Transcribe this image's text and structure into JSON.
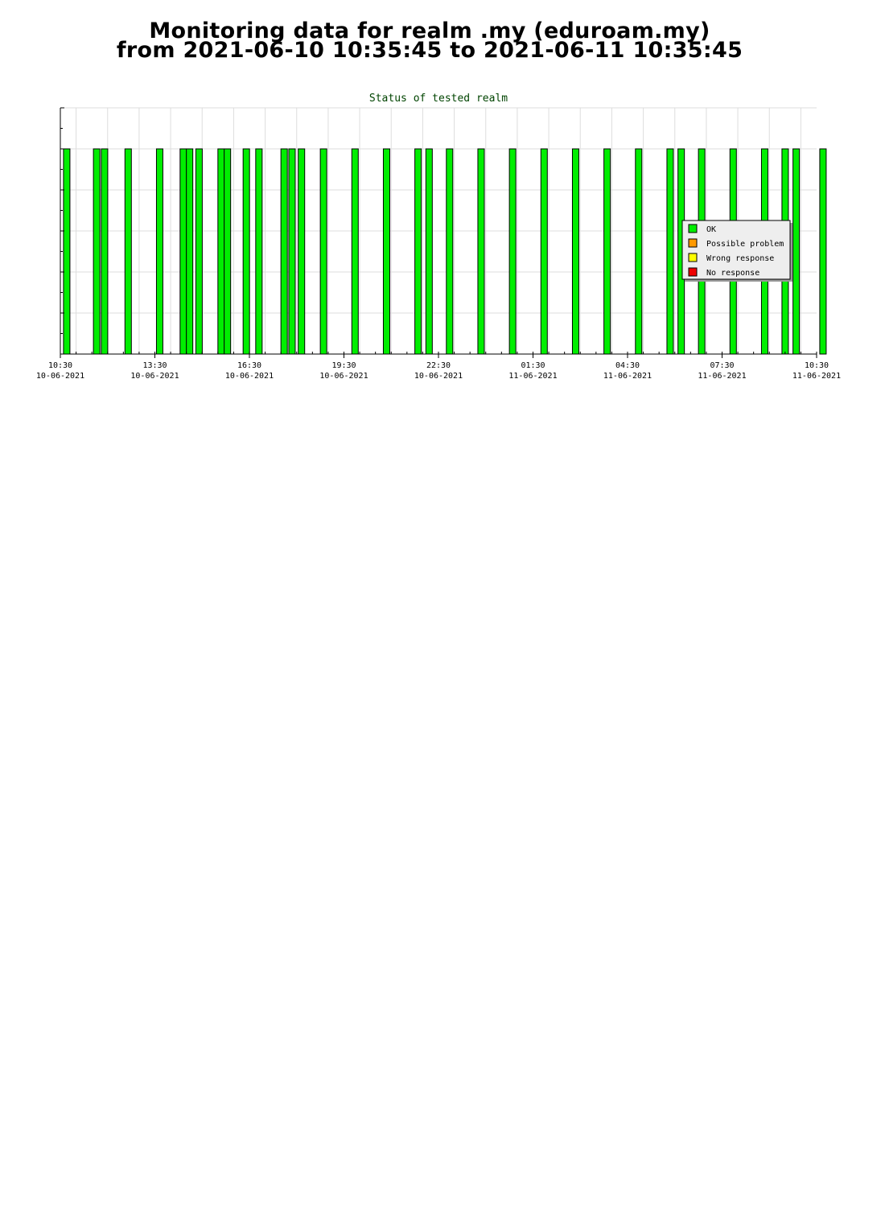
{
  "page": {
    "title_line1": "Monitoring data for realm .my  (eduroam.my)",
    "title_line2": "from 2021-06-10 10:35:45 to 2021-06-11 10:35:45"
  },
  "colors": {
    "ok": "#00ee00",
    "possible_problem": "#ff9900",
    "wrong_response": "#ffff00",
    "no_response": "#ee0000",
    "title": "#004400",
    "grid": "#dddddd"
  },
  "chart_data": {
    "type": "bar",
    "title": "Status of tested realm",
    "xlabel": "",
    "ylabel": "",
    "x_range_hours": [
      10.5,
      34.5
    ],
    "ylim": [
      0,
      6
    ],
    "grid": true,
    "legend_placement": "right",
    "x_ticks": [
      {
        "hour": 10.5,
        "time": "10:30",
        "date": "10-06-2021"
      },
      {
        "hour": 13.5,
        "time": "13:30",
        "date": "10-06-2021"
      },
      {
        "hour": 16.5,
        "time": "16:30",
        "date": "10-06-2021"
      },
      {
        "hour": 19.5,
        "time": "19:30",
        "date": "10-06-2021"
      },
      {
        "hour": 22.5,
        "time": "22:30",
        "date": "10-06-2021"
      },
      {
        "hour": 25.5,
        "time": "01:30",
        "date": "11-06-2021"
      },
      {
        "hour": 28.5,
        "time": "04:30",
        "date": "11-06-2021"
      },
      {
        "hour": 31.5,
        "time": "07:30",
        "date": "11-06-2021"
      },
      {
        "hour": 34.5,
        "time": "10:30",
        "date": "11-06-2021"
      }
    ],
    "legend": [
      {
        "label": "OK",
        "color_key": "ok"
      },
      {
        "label": "Possible problem",
        "color_key": "possible_problem"
      },
      {
        "label": "Wrong response",
        "color_key": "wrong_response"
      },
      {
        "label": "No response",
        "color_key": "no_response"
      }
    ],
    "series": [
      {
        "status": "OK",
        "value": 5,
        "times_hours": [
          10.6,
          11.55,
          11.8,
          12.55,
          13.55,
          14.3,
          14.5,
          14.8,
          15.5,
          15.7,
          16.3,
          16.7,
          17.5,
          17.75,
          18.05,
          18.75,
          19.75,
          20.75,
          21.75,
          22.1,
          22.75,
          23.75,
          24.75,
          25.75,
          26.75,
          27.75,
          28.75,
          29.75,
          30.1,
          30.75,
          31.75,
          32.75,
          33.4,
          33.75,
          34.6
        ]
      }
    ]
  }
}
